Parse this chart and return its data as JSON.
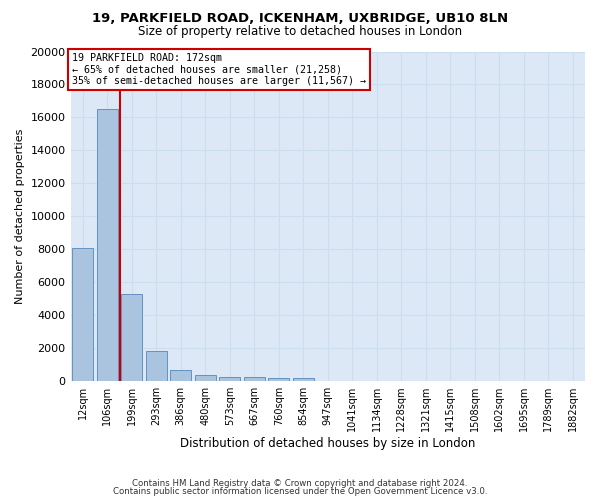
{
  "title_line1": "19, PARKFIELD ROAD, ICKENHAM, UXBRIDGE, UB10 8LN",
  "title_line2": "Size of property relative to detached houses in London",
  "xlabel": "Distribution of detached houses by size in London",
  "ylabel": "Number of detached properties",
  "footer_line1": "Contains HM Land Registry data © Crown copyright and database right 2024.",
  "footer_line2": "Contains public sector information licensed under the Open Government Licence v3.0.",
  "annotation_line1": "19 PARKFIELD ROAD: 172sqm",
  "annotation_line2": "← 65% of detached houses are smaller (21,258)",
  "annotation_line3": "35% of semi-detached houses are larger (11,567) →",
  "bar_labels": [
    "12sqm",
    "106sqm",
    "199sqm",
    "293sqm",
    "386sqm",
    "480sqm",
    "573sqm",
    "667sqm",
    "760sqm",
    "854sqm",
    "947sqm",
    "1041sqm",
    "1134sqm",
    "1228sqm",
    "1321sqm",
    "1415sqm",
    "1508sqm",
    "1602sqm",
    "1695sqm",
    "1789sqm",
    "1882sqm"
  ],
  "bar_values": [
    8100,
    16500,
    5300,
    1850,
    680,
    360,
    270,
    220,
    190,
    170,
    0,
    0,
    0,
    0,
    0,
    0,
    0,
    0,
    0,
    0,
    0
  ],
  "bar_color": "#aac4e0",
  "bar_edge_color": "#5588bb",
  "red_line_x": 1.5,
  "annotation_box_color": "#cc0000",
  "grid_color": "#ccddee",
  "background_color": "#dce8f5",
  "ylim": [
    0,
    20000
  ],
  "yticks": [
    0,
    2000,
    4000,
    6000,
    8000,
    10000,
    12000,
    14000,
    16000,
    18000,
    20000
  ]
}
